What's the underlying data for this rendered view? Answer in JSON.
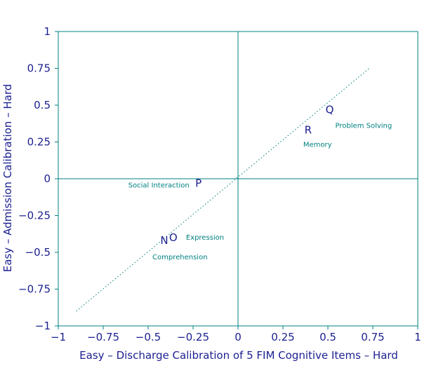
{
  "chart_data": {
    "type": "scatter",
    "xlabel": "Easy –  Discharge Calibration of 5 FIM Cognitive Items  – Hard",
    "ylabel": "Easy   –   Admission Calibration   –   Hard",
    "xlim": [
      -1,
      1
    ],
    "ylim": [
      -1,
      1
    ],
    "x_ticks": [
      "−1",
      "−0.75",
      "−0.5",
      "−0.25",
      "0",
      "0.25",
      "0.5",
      "0.75",
      "1"
    ],
    "y_ticks": [
      "−1",
      "−0.75",
      "−0.5",
      "−0.25",
      "0",
      "0.25",
      "0.5",
      "0.75",
      "1"
    ],
    "x_tick_values": [
      -1,
      -0.75,
      -0.5,
      -0.25,
      0,
      0.25,
      0.5,
      0.75,
      1
    ],
    "y_tick_values": [
      -1,
      -0.75,
      -0.5,
      -0.25,
      0,
      0.25,
      0.5,
      0.75,
      1
    ],
    "points": [
      {
        "letter": "N",
        "item": "Comprehension",
        "x": -0.41,
        "y": -0.42
      },
      {
        "letter": "O",
        "item": "Expression",
        "x": -0.36,
        "y": -0.4
      },
      {
        "letter": "P",
        "item": "Social Interaction",
        "x": -0.22,
        "y": -0.03
      },
      {
        "letter": "Q",
        "item": "Problem Solving",
        "x": 0.51,
        "y": 0.47
      },
      {
        "letter": "R",
        "item": "Memory",
        "x": 0.39,
        "y": 0.33
      }
    ],
    "reference_line": {
      "style": "dotted",
      "from": [
        -0.9,
        -0.9
      ],
      "to": [
        0.73,
        0.75
      ]
    },
    "grid": false,
    "colors": {
      "axis": "#008080",
      "text": "#1b1f8f",
      "labels": "#008080"
    }
  }
}
